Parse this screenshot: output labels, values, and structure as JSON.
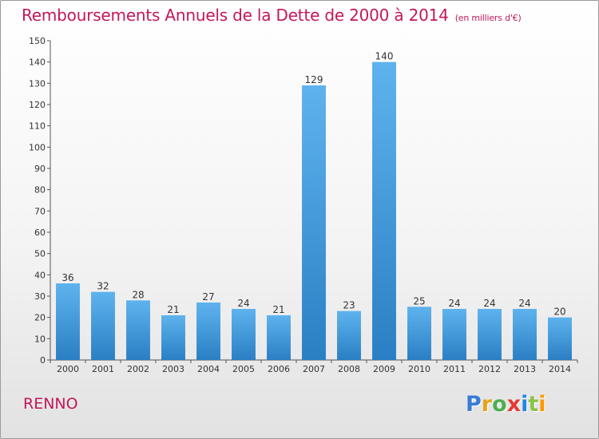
{
  "title": "Remboursements Annuels de la Dette de 2000 à 2014",
  "subtitle": "(en milliers d'€)",
  "commune": "RENNO",
  "logo": {
    "letters": [
      "P",
      "r",
      "o",
      "x",
      "i",
      "t",
      "i"
    ],
    "colors": [
      "#3a7bd5",
      "#e8a317",
      "#4caf50",
      "#e53935",
      "#1e88e5",
      "#8bc34a",
      "#ff9800"
    ]
  },
  "colors": {
    "bar_top": "#5eb3ee",
    "bar_bottom": "#2a7fc4",
    "title": "#c2185b"
  },
  "chart_data": {
    "type": "bar",
    "title": "Remboursements Annuels de la Dette de 2000 à 2014",
    "subtitle": "(en milliers d'€)",
    "categories": [
      "2000",
      "2001",
      "2002",
      "2003",
      "2004",
      "2005",
      "2006",
      "2007",
      "2008",
      "2009",
      "2010",
      "2011",
      "2012",
      "2013",
      "2014"
    ],
    "values": [
      36,
      32,
      28,
      21,
      27,
      24,
      21,
      129,
      23,
      140,
      25,
      24,
      24,
      24,
      20
    ],
    "ylim": [
      0,
      150
    ],
    "yticks": [
      0,
      10,
      20,
      30,
      40,
      50,
      60,
      70,
      80,
      90,
      100,
      110,
      120,
      130,
      140,
      150
    ],
    "grid": false,
    "legend": "none"
  }
}
